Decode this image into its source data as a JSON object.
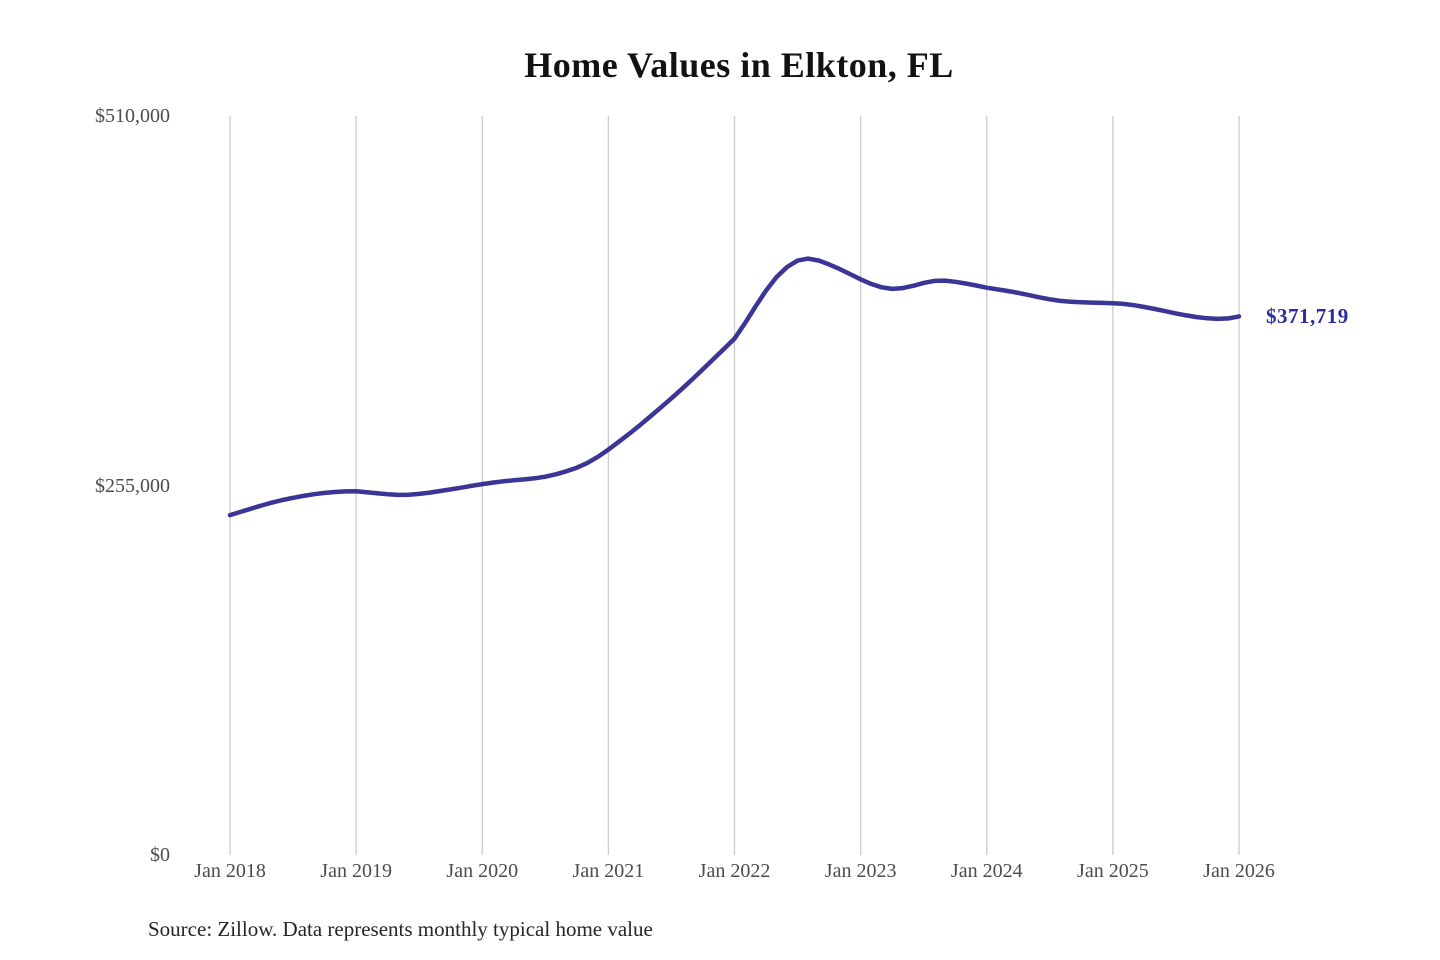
{
  "chart_data": {
    "type": "line",
    "title": "Home Values in Elkton, FL",
    "series_name": "Monthly typical home value",
    "unit": "USD",
    "source_note": "Source: Zillow. Data represents monthly typical home value",
    "end_label": "$371,719",
    "latest_value": 371719,
    "x_frequency": "monthly",
    "x_start": "Jan 2018",
    "x_end": "Jan 2026",
    "x_tick_labels": [
      "Jan 2018",
      "Jan 2019",
      "Jan 2020",
      "Jan 2021",
      "Jan 2022",
      "Jan 2023",
      "Jan 2024",
      "Jan 2025",
      "Jan 2026"
    ],
    "y_ticks": [
      0,
      255000,
      510000
    ],
    "y_tick_labels": [
      "$0",
      "$255,000",
      "$510,000"
    ],
    "ylim": [
      0,
      510000
    ],
    "grid": "vertical-only",
    "legend": "none",
    "line_color": "#3a3596",
    "end_label_color": "#2b2c9e",
    "grid_color": "#cbcbcb",
    "values": [
      234600,
      236800,
      239000,
      241200,
      243200,
      245000,
      246500,
      247800,
      249000,
      249900,
      250500,
      250900,
      251000,
      250400,
      249600,
      248900,
      248500,
      248600,
      249200,
      250100,
      251200,
      252300,
      253500,
      254800,
      256000,
      257000,
      257900,
      258600,
      259200,
      260000,
      261100,
      262700,
      264800,
      267300,
      270600,
      274800,
      279800,
      285200,
      290800,
      296600,
      302700,
      308900,
      315200,
      321700,
      328400,
      335300,
      342300,
      349300,
      356400,
      367000,
      378500,
      389500,
      398800,
      405800,
      410200,
      411600,
      410300,
      407600,
      404400,
      400900,
      397300,
      394100,
      391800,
      390700,
      391200,
      392800,
      394800,
      396200,
      396400,
      395600,
      394400,
      393000,
      391500,
      390300,
      389200,
      387900,
      386400,
      384900,
      383500,
      382400,
      381800,
      381400,
      381200,
      381000,
      380800,
      380300,
      379400,
      378200,
      376800,
      375300,
      373800,
      372400,
      371200,
      370400,
      370000,
      370300,
      371719
    ]
  }
}
